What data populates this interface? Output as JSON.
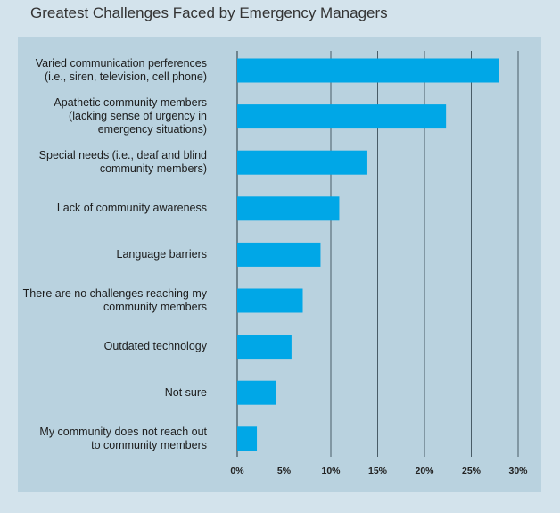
{
  "title": "Greatest Challenges Faced by Emergency Managers",
  "chart_data": {
    "type": "bar",
    "orientation": "horizontal",
    "title": "Greatest Challenges Faced by Emergency Managers",
    "categories": [
      "Varied communication perferences\n(i.e., siren, television, cell phone)",
      "Apathetic community members\n(lacking sense of urgency in\nemergency situations)",
      "Special needs (i.e., deaf and blind\ncommunity members)",
      "Lack of community awareness",
      "Language barriers",
      "There are no challenges reaching my\ncommunity members",
      "Outdated technology",
      "Not sure",
      "My community does not reach out\nto community members"
    ],
    "values": [
      28,
      22.3,
      13.9,
      10.9,
      8.9,
      7,
      5.8,
      4.1,
      2.1
    ],
    "xlim": [
      0,
      30
    ],
    "xticks": [
      "0%",
      "5%",
      "10%",
      "15%",
      "20%",
      "25%",
      "30%"
    ],
    "grid": true,
    "colors": {
      "bar": "#00a7e7",
      "grid": "#3d4f5a",
      "panel": "#b9d2df",
      "background": "#d3e3ec"
    }
  }
}
